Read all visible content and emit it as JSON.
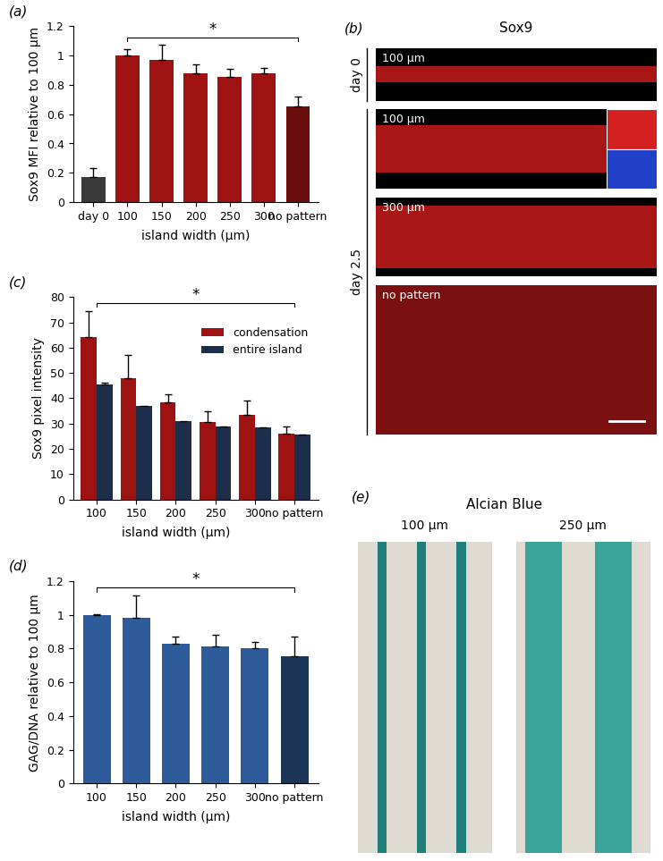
{
  "chart_data": [
    {
      "panel": "(a)",
      "type": "bar",
      "categories": [
        "day 0",
        "100",
        "150",
        "200",
        "250",
        "300",
        "no pattern"
      ],
      "values": [
        0.17,
        1,
        0.97,
        0.875,
        0.85,
        0.875,
        0.65
      ],
      "errors": [
        0.06,
        0.04,
        0.1,
        0.065,
        0.055,
        0.04,
        0.07
      ],
      "colors": [
        "#3a3a3a",
        "#9e1212",
        "#9e1212",
        "#9e1212",
        "#9e1212",
        "#9e1212",
        "#6a0d0d"
      ],
      "y_label": "Sox9 MFI relative to 100 μm",
      "x_label": "island width (μm)",
      "ylim": [
        0,
        1.2
      ],
      "yticks": [
        0,
        0.2,
        0.4,
        0.6,
        0.8,
        1,
        1.2
      ],
      "annotations": [
        {
          "text": "*",
          "from": "100",
          "to": "no pattern"
        }
      ]
    },
    {
      "panel": "(c)",
      "type": "bar",
      "categories": [
        "100",
        "150",
        "200",
        "250",
        "300",
        "no pattern"
      ],
      "series": [
        {
          "name": "condensation",
          "color": "#9e1212",
          "values": [
            64,
            48,
            38.5,
            30.5,
            33.5,
            26
          ],
          "errors": [
            10.5,
            9,
            3,
            4.5,
            5.5,
            3
          ]
        },
        {
          "name": "entire island",
          "color": "#1c2e4a",
          "values": [
            45.5,
            37,
            31,
            29,
            28.5,
            25.5
          ],
          "errors": [
            0.7,
            null,
            null,
            null,
            null,
            null
          ]
        }
      ],
      "y_label": "Sox9 pixel intensity",
      "x_label": "island width (μm)",
      "ylim": [
        0,
        80
      ],
      "yticks": [
        0,
        10,
        20,
        30,
        40,
        50,
        60,
        70,
        80
      ],
      "legend": "upper right",
      "annotations": [
        {
          "text": "*",
          "from": "100",
          "to": "no pattern"
        }
      ]
    },
    {
      "panel": "(d)",
      "type": "bar",
      "categories": [
        "100",
        "150",
        "200",
        "250",
        "300",
        "no pattern"
      ],
      "values": [
        1,
        0.985,
        0.83,
        0.815,
        0.8,
        0.755
      ],
      "errors": [
        0.003,
        0.13,
        0.04,
        0.065,
        0.04,
        0.115
      ],
      "colors": [
        "#2e5b9a",
        "#2e5b9a",
        "#2e5b9a",
        "#2e5b9a",
        "#2e5b9a",
        "#1c3557"
      ],
      "y_label": "GAG/DNA relative to 100 μm",
      "x_label": "island width (μm)",
      "ylim": [
        0,
        1.2
      ],
      "yticks": [
        0,
        0.2,
        0.4,
        0.6,
        0.8,
        1,
        1.2
      ],
      "annotations": [
        {
          "text": "*",
          "from": "100",
          "to": "no pattern"
        }
      ]
    }
  ],
  "images": [
    {
      "panel": "(b)",
      "title": "Sox9",
      "rows": [
        {
          "group": "day 0",
          "labels": [
            "100 μm"
          ]
        },
        {
          "group": "day 2.5",
          "labels": [
            "100 μm",
            "300 μm",
            "no pattern"
          ]
        }
      ]
    },
    {
      "panel": "(e)",
      "title": "Alcian Blue",
      "labels": [
        "100 μm",
        "250 μm"
      ]
    }
  ]
}
